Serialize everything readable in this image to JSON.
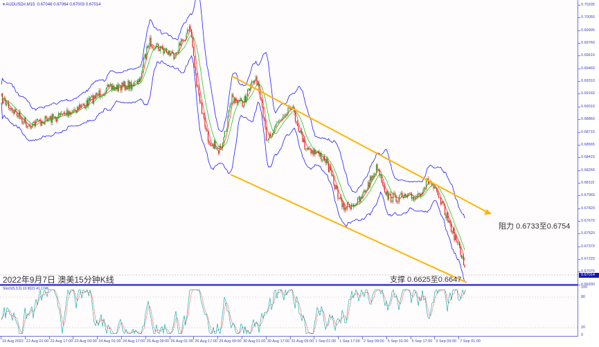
{
  "header": {
    "symbol": "AUDUSD#,M15",
    "values": "0.67048 0.67064 0.67003 0.67014"
  },
  "price_axis": [
    "0.70205",
    "0.70055",
    "0.69905",
    "0.69760",
    "0.69610",
    "0.69460",
    "0.69310",
    "0.69160",
    "0.69010",
    "0.68860",
    "0.68715",
    "0.68565",
    "0.68415",
    "0.68265",
    "0.68115",
    "0.67965",
    "0.67820",
    "0.67670",
    "0.67520",
    "0.67370",
    "0.67220",
    "0.67075",
    "0.66930"
  ],
  "current_price": "0.67014",
  "stoch": {
    "label": "Stoch(5,3,3) 13.9021 41.1746",
    "levels": [
      "100",
      "80",
      "20",
      "0"
    ]
  },
  "time_axis": [
    "19 Aug 2022",
    "22 Aug 01:00",
    "22 Aug 17:00",
    "23 Aug 09:00",
    "24 Aug 01:00",
    "24 Aug 17:00",
    "25 Aug 09:00",
    "26 Aug 01:00",
    "26 Aug 17:00",
    "29 Aug 09:00",
    "30 Aug 01:00",
    "30 Aug 17:00",
    "31 Aug 09:00",
    "1 Sep 01:00",
    "1 Sep 17:00",
    "2 Sep 09:00",
    "5 Sep 01:00",
    "5 Sep 17:00",
    "6 Sep 09:00",
    "7 Sep 01:00"
  ],
  "annotations": {
    "caption": "2022年9月7日 澳美15分钟K线",
    "resistance": "阻力 0.6733至0.6754",
    "support": "支撑 0.6625至0.6647"
  },
  "colors": {
    "channel": "#FFB400",
    "bands": "#1a1aff",
    "bull": "#2aa02a",
    "bear": "#e02020",
    "ma_fast": "#ff2020",
    "ma_slow": "#00c000",
    "stoch_main": "#18b0b0",
    "stoch_signal": "#e03030"
  }
}
